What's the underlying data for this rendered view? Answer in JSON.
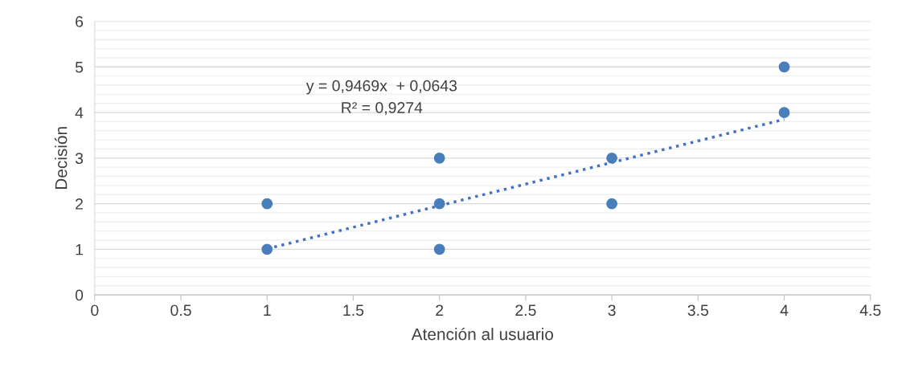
{
  "chart_data": {
    "type": "scatter",
    "xlabel": "Atención al usuario",
    "ylabel": "Decisión",
    "series": [
      {
        "color": "#4a7ebb",
        "marker": "circle",
        "x": [
          1,
          1,
          2,
          2,
          2,
          3,
          3,
          4,
          4
        ],
        "values": [
          1,
          2,
          1,
          2,
          3,
          2,
          3,
          4,
          5
        ]
      },
      {
        "type": "line",
        "color": "#4472c4",
        "marker": "none",
        "line_style": "dotted",
        "x": [
          1,
          4
        ],
        "values": [
          1.01,
          3.85
        ]
      }
    ],
    "annotations": [
      "y = 0,9469x  + 0,0643",
      "R² = 0,9274"
    ],
    "xlim": [
      0,
      4.5
    ],
    "xticks": [
      0,
      0.5,
      1,
      1.5,
      2,
      2.5,
      3,
      3.5,
      4,
      4.5
    ],
    "ylim": [
      0,
      6
    ],
    "yticks": [
      0,
      {
        "value": 0.2,
        "label": null
      },
      {
        "value": 0.4,
        "label": null
      },
      {
        "value": 0.6,
        "label": null
      },
      {
        "value": 0.8,
        "label": null
      },
      1,
      {
        "value": 1.2,
        "label": null
      },
      {
        "value": 1.4,
        "label": null
      },
      {
        "value": 1.6,
        "label": null
      },
      {
        "value": 1.8,
        "label": null
      },
      2,
      {
        "value": 2.2,
        "label": null
      },
      {
        "value": 2.4,
        "label": null
      },
      {
        "value": 2.6,
        "label": null
      },
      {
        "value": 2.8,
        "label": null
      },
      3,
      {
        "value": 3.2,
        "label": null
      },
      {
        "value": 3.4,
        "label": null
      },
      {
        "value": 3.6,
        "label": null
      },
      {
        "value": 3.8,
        "label": null
      },
      4,
      {
        "value": 4.2,
        "label": null
      },
      {
        "value": 4.4,
        "label": null
      },
      {
        "value": 4.6,
        "label": null
      },
      {
        "value": 4.8,
        "label": null
      },
      5,
      {
        "value": 5.2,
        "label": null
      },
      {
        "value": 5.4,
        "label": null
      },
      {
        "value": 5.6,
        "label": null
      },
      {
        "value": 5.8,
        "label": null
      },
      6
    ],
    "grid": "y",
    "legend": false
  }
}
